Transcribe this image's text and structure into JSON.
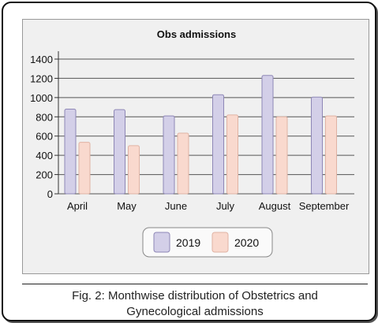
{
  "chart_data": {
    "type": "bar",
    "title": "Obs admissions",
    "categories": [
      "April",
      "May",
      "June",
      "July",
      "August",
      "September"
    ],
    "series": [
      {
        "name": "2019",
        "values": [
          880,
          875,
          810,
          1030,
          1230,
          1005
        ]
      },
      {
        "name": "2020",
        "values": [
          535,
          500,
          630,
          820,
          800,
          810
        ]
      }
    ],
    "ylim": [
      0,
      1400
    ],
    "yticks": [
      "0",
      "200",
      "400",
      "600",
      "800",
      "1000",
      "1200",
      "1400"
    ],
    "grid": true,
    "legend_position": "bottom",
    "colors": {
      "2019_fill": "#d3cfe8",
      "2019_stroke": "#8e87b6",
      "2020_fill": "#f9d9ce",
      "2020_stroke": "#e0b3a4"
    }
  },
  "caption": {
    "line1": "Fig. 2: Monthwise distribution of Obstetrics and",
    "line2": "Gynecological admissions"
  }
}
